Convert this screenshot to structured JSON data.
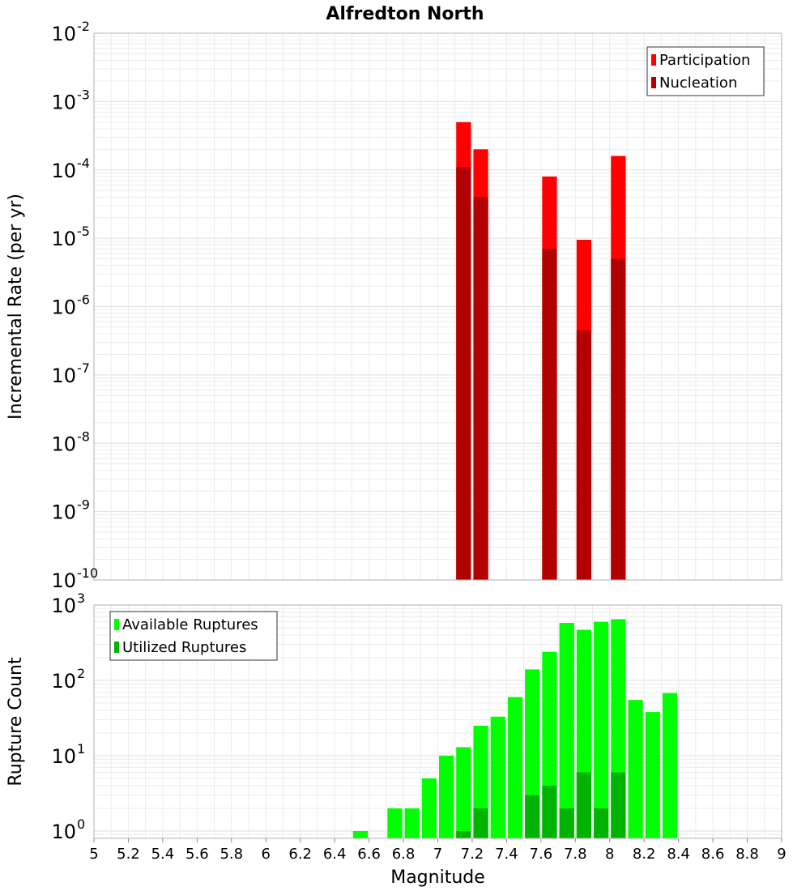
{
  "chart_data": [
    {
      "type": "bar",
      "title": "Alfredton North",
      "xlabel": "",
      "ylabel": "Incremental Rate (per yr)",
      "yscale": "log",
      "ylim": [
        1e-10,
        0.01
      ],
      "xlim": [
        5,
        9
      ],
      "legend_position": "top-right",
      "grid": true,
      "bar_width": 0.1,
      "ytick_exponents": [
        -10,
        -9,
        -8,
        -7,
        -6,
        -5,
        -4,
        -3,
        -2
      ],
      "series": [
        {
          "name": "Participation",
          "color": "#ff0000",
          "points": [
            {
              "x": 7.15,
              "y": 0.0005
            },
            {
              "x": 7.25,
              "y": 0.0002
            },
            {
              "x": 7.65,
              "y": 8e-05
            },
            {
              "x": 7.85,
              "y": 9.5e-06
            },
            {
              "x": 8.05,
              "y": 0.00016
            }
          ]
        },
        {
          "name": "Nucleation",
          "color": "#b30000",
          "points": [
            {
              "x": 7.15,
              "y": 0.00011
            },
            {
              "x": 7.25,
              "y": 4e-05
            },
            {
              "x": 7.65,
              "y": 7e-06
            },
            {
              "x": 7.85,
              "y": 4.5e-07
            },
            {
              "x": 8.05,
              "y": 5e-06
            }
          ]
        }
      ]
    },
    {
      "type": "bar",
      "title": "",
      "xlabel": "Magnitude",
      "ylabel": "Rupture Count",
      "yscale": "log",
      "ylim": [
        0.8,
        1000
      ],
      "xlim": [
        5,
        9
      ],
      "legend_position": "top-left",
      "grid": true,
      "bar_width": 0.1,
      "ytick_exponents": [
        0,
        1,
        2,
        3
      ],
      "xticks": [
        "5",
        "5.2",
        "5.4",
        "5.6",
        "5.8",
        "6",
        "6.2",
        "6.4",
        "6.6",
        "6.8",
        "7",
        "7.2",
        "7.4",
        "7.6",
        "7.8",
        "8",
        "8.2",
        "8.4",
        "8.6",
        "8.8",
        "9"
      ],
      "series": [
        {
          "name": "Available Ruptures",
          "color": "#00ff00",
          "points": [
            {
              "x": 6.55,
              "y": 1
            },
            {
              "x": 6.75,
              "y": 2
            },
            {
              "x": 6.85,
              "y": 2
            },
            {
              "x": 6.95,
              "y": 5
            },
            {
              "x": 7.05,
              "y": 10
            },
            {
              "x": 7.15,
              "y": 13
            },
            {
              "x": 7.25,
              "y": 25
            },
            {
              "x": 7.35,
              "y": 33
            },
            {
              "x": 7.45,
              "y": 60
            },
            {
              "x": 7.55,
              "y": 140
            },
            {
              "x": 7.65,
              "y": 240
            },
            {
              "x": 7.75,
              "y": 580
            },
            {
              "x": 7.85,
              "y": 470
            },
            {
              "x": 7.95,
              "y": 600
            },
            {
              "x": 8.05,
              "y": 650
            },
            {
              "x": 8.15,
              "y": 55
            },
            {
              "x": 8.25,
              "y": 38
            },
            {
              "x": 8.35,
              "y": 68
            }
          ]
        },
        {
          "name": "Utilized Ruptures",
          "color": "#00b300",
          "points": [
            {
              "x": 7.15,
              "y": 1
            },
            {
              "x": 7.25,
              "y": 2
            },
            {
              "x": 7.55,
              "y": 3
            },
            {
              "x": 7.65,
              "y": 4
            },
            {
              "x": 7.75,
              "y": 2
            },
            {
              "x": 7.85,
              "y": 6
            },
            {
              "x": 7.95,
              "y": 2
            },
            {
              "x": 8.05,
              "y": 6
            }
          ]
        }
      ]
    }
  ]
}
